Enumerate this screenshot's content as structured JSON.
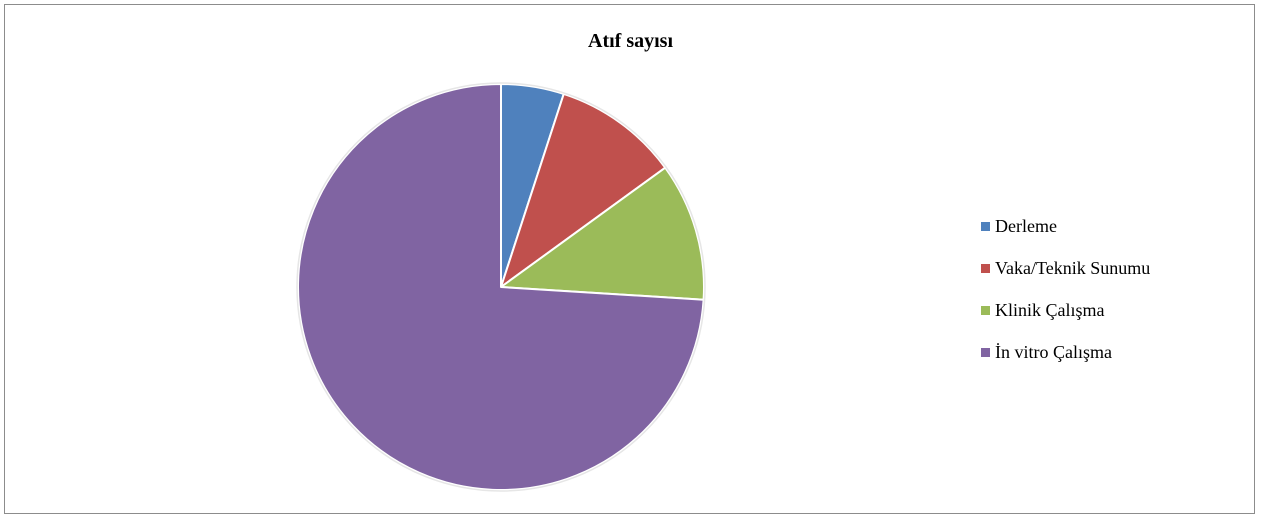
{
  "chart_data": {
    "type": "pie",
    "title": "Atıf sayısı",
    "categories": [
      "Derleme",
      "Vaka/Teknik Sunumu",
      "Klinik Çalışma",
      "İn vitro Çalışma"
    ],
    "values": [
      5,
      10,
      11,
      74
    ],
    "colors": [
      "#4F81BD",
      "#C0504D",
      "#9BBB59",
      "#8064A2"
    ],
    "legend_position": "right",
    "start_angle": "12 o'clock",
    "direction": "clockwise"
  }
}
